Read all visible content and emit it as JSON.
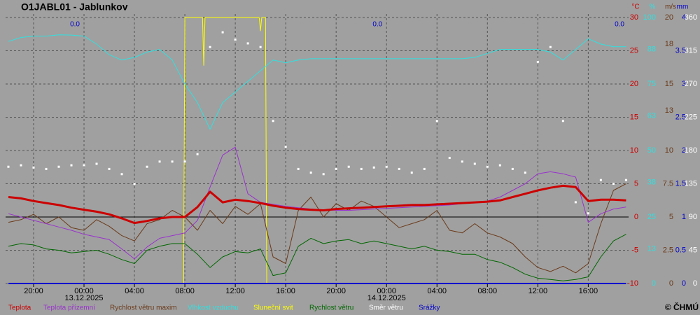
{
  "chart_data": {
    "type": "line",
    "title": "O1JABL01 - Jablunkov",
    "copyright": "© ČHMÚ",
    "xlim": [
      -6.22,
      43.2
    ],
    "xticks": [
      {
        "value": -4,
        "label": "20:00"
      },
      {
        "value": 0,
        "label": "00:00"
      },
      {
        "value": 4,
        "label": "04:00"
      },
      {
        "value": 8,
        "label": "08:00"
      },
      {
        "value": 12,
        "label": "12:00"
      },
      {
        "value": 16,
        "label": "16:00"
      },
      {
        "value": 20,
        "label": "20:00"
      },
      {
        "value": 24,
        "label": "00:00"
      },
      {
        "value": 28,
        "label": "04:00"
      },
      {
        "value": 32,
        "label": "08:00"
      },
      {
        "value": 36,
        "label": "12:00"
      },
      {
        "value": 40,
        "label": "16:00"
      }
    ],
    "date_labels": [
      {
        "value": 0,
        "label": "13.12.2025"
      },
      {
        "value": 24,
        "label": "14.12.2025"
      }
    ],
    "grid": true,
    "zero_line": 0,
    "axes": [
      {
        "unit": "°C",
        "color": "#cc0000",
        "lim": [
          -10,
          30
        ],
        "ticks": [
          30,
          25,
          20,
          15,
          10,
          5,
          0,
          -5,
          -10
        ]
      },
      {
        "unit": "%",
        "color": "#30e0e0",
        "lim": [
          0,
          100
        ],
        "ticks": [
          100,
          88,
          75,
          63,
          50,
          38,
          25,
          13,
          0
        ]
      },
      {
        "unit": "m/s",
        "color": "#6b3a1a",
        "lim": [
          0,
          20
        ],
        "ticks": [
          20,
          18,
          15,
          13,
          10,
          7.5,
          5,
          2.5,
          0
        ]
      },
      {
        "unit": "mm",
        "color": "#0000cc",
        "lim": [
          0,
          4
        ],
        "ticks": [
          4,
          3.5,
          3,
          2.5,
          2,
          1.5,
          1,
          0.5,
          0
        ]
      },
      {
        "color": "#ffffff",
        "lim": [
          0,
          360
        ],
        "ticks": [
          360,
          315,
          270,
          225,
          180,
          135,
          90,
          45,
          0
        ]
      }
    ],
    "daily_totals": {
      "color": "#0000cc",
      "values": [
        0,
        0,
        0
      ],
      "value_labels": [
        "0.0",
        "0.0",
        "0.0"
      ]
    },
    "x": [
      -6,
      -5,
      -4,
      -3,
      -2,
      -1,
      0,
      1,
      2,
      3,
      4,
      5,
      6,
      7,
      8,
      9,
      10,
      11,
      12,
      13,
      14,
      15,
      16,
      17,
      18,
      19,
      20,
      21,
      22,
      23,
      24,
      25,
      26,
      27,
      28,
      29,
      30,
      31,
      32,
      33,
      34,
      35,
      36,
      37,
      38,
      39,
      40,
      41,
      42,
      43
    ],
    "series": [
      {
        "name": "Teplota",
        "color": "#cc0000",
        "width": 3,
        "axis": 0,
        "kind": "line",
        "values": [
          3.0,
          2.8,
          2.4,
          2.1,
          1.8,
          1.4,
          1.1,
          0.8,
          0.4,
          -0.2,
          -0.9,
          -0.6,
          -0.2,
          0.0,
          0.0,
          1.5,
          3.8,
          2.2,
          2.6,
          2.4,
          2.1,
          1.7,
          1.4,
          1.2,
          1.1,
          1.0,
          1.2,
          1.3,
          1.4,
          1.5,
          1.6,
          1.7,
          1.8,
          1.8,
          1.9,
          2.0,
          2.1,
          2.2,
          2.3,
          2.5,
          3.0,
          3.5,
          4.0,
          4.4,
          4.7,
          4.5,
          2.4,
          2.6,
          2.6,
          2.5
        ]
      },
      {
        "name": "Teplota přízemní",
        "color": "#9933cc",
        "width": 1,
        "axis": 0,
        "kind": "line",
        "values": [
          0.5,
          0.0,
          -0.5,
          -1.0,
          -1.5,
          -2.0,
          -2.6,
          -3.0,
          -3.4,
          -4.8,
          -6.3,
          -4.5,
          -3.2,
          -2.8,
          -2.4,
          -0.5,
          4.5,
          9.3,
          10.5,
          3.5,
          2.2,
          1.9,
          1.6,
          1.4,
          1.2,
          1.1,
          1.0,
          1.0,
          1.1,
          1.2,
          1.3,
          1.4,
          1.5,
          1.6,
          1.7,
          1.8,
          2.0,
          2.2,
          2.4,
          3.0,
          4.0,
          5.0,
          6.5,
          6.8,
          6.5,
          6.0,
          -0.8,
          0.5,
          1.2,
          1.5
        ]
      },
      {
        "name": "Rychlost větru maxim",
        "color": "#6b3a1a",
        "width": 1,
        "axis": 2,
        "kind": "line",
        "values": [
          4.6,
          4.8,
          5.2,
          4.5,
          5.0,
          4.2,
          4.0,
          4.8,
          4.3,
          3.6,
          3.2,
          4.5,
          4.8,
          5.5,
          5.0,
          4.0,
          5.5,
          4.5,
          5.8,
          5.2,
          6.0,
          2.0,
          1.5,
          5.5,
          6.5,
          5.0,
          6.0,
          5.5,
          6.2,
          5.8,
          5.0,
          4.2,
          4.5,
          4.8,
          5.5,
          4.0,
          3.8,
          4.5,
          3.8,
          3.5,
          3.0,
          2.0,
          1.2,
          0.9,
          1.3,
          0.8,
          1.5,
          4.5,
          7.0,
          7.5
        ]
      },
      {
        "name": "Vlhkost vzduchu",
        "color": "#30e0e0",
        "width": 1,
        "axis": 1,
        "kind": "line",
        "values": [
          91,
          92.5,
          93,
          93,
          93.5,
          93.4,
          93,
          90,
          86,
          84,
          85,
          87,
          88,
          84,
          75,
          68,
          58,
          68,
          72,
          76,
          80,
          84,
          83,
          84,
          84.5,
          84.5,
          84.5,
          84.5,
          84.5,
          84.5,
          84.5,
          84.5,
          84.5,
          84.5,
          84.5,
          84.5,
          84.5,
          85,
          86.5,
          88,
          88,
          88,
          88,
          87,
          84,
          88,
          92,
          90,
          89,
          89
        ]
      },
      {
        "name": "Sluneční svit",
        "color": "#ffff00",
        "width": 1,
        "axis": 1,
        "kind": "line",
        "x": [
          7.9,
          8.0,
          9.4,
          9.5,
          9.6,
          13.9,
          14.0,
          14.1,
          14.4,
          14.5
        ],
        "values": [
          0,
          100,
          100,
          82,
          100,
          100,
          95,
          100,
          100,
          0
        ]
      },
      {
        "name": "Rychlost větru",
        "color": "#006600",
        "width": 1,
        "axis": 2,
        "kind": "line",
        "values": [
          2.8,
          3.0,
          2.9,
          2.6,
          2.5,
          2.3,
          2.4,
          2.5,
          2.2,
          1.8,
          1.5,
          2.5,
          2.8,
          3.0,
          3.0,
          2.2,
          1.2,
          2.0,
          2.4,
          2.3,
          2.6,
          0.6,
          0.8,
          2.8,
          3.4,
          3.0,
          3.2,
          3.3,
          3.0,
          3.2,
          3.0,
          2.8,
          2.6,
          2.8,
          2.5,
          2.4,
          2.2,
          2.2,
          1.8,
          1.6,
          1.2,
          0.7,
          0.4,
          0.3,
          0.2,
          0.3,
          0.5,
          2.0,
          3.2,
          3.7
        ]
      },
      {
        "name": "Směr  větru",
        "color": "#ffffff",
        "axis": 4,
        "kind": "scatter",
        "values": [
          158,
          160,
          157,
          155,
          158,
          160,
          160,
          162,
          155,
          148,
          135,
          158,
          165,
          165,
          165,
          175,
          320,
          340,
          330,
          325,
          320,
          220,
          185,
          155,
          150,
          148,
          155,
          158,
          155,
          157,
          158,
          155,
          150,
          155,
          220,
          170,
          165,
          162,
          158,
          160,
          155,
          150,
          300,
          320,
          220,
          110,
          95,
          140,
          135,
          140
        ]
      },
      {
        "name": "Srážky",
        "color": "#0000cc",
        "width": 2,
        "axis": 3,
        "kind": "line",
        "values": [
          0,
          0,
          0,
          0,
          0,
          0,
          0,
          0,
          0,
          0,
          0,
          0,
          0,
          0,
          0,
          0,
          0,
          0,
          0,
          0,
          0,
          0,
          0,
          0,
          0,
          0,
          0,
          0,
          0,
          0,
          0,
          0,
          0,
          0,
          0,
          0,
          0,
          0,
          0,
          0,
          0,
          0,
          0,
          0,
          0,
          0,
          0,
          0,
          0,
          0
        ]
      }
    ]
  }
}
